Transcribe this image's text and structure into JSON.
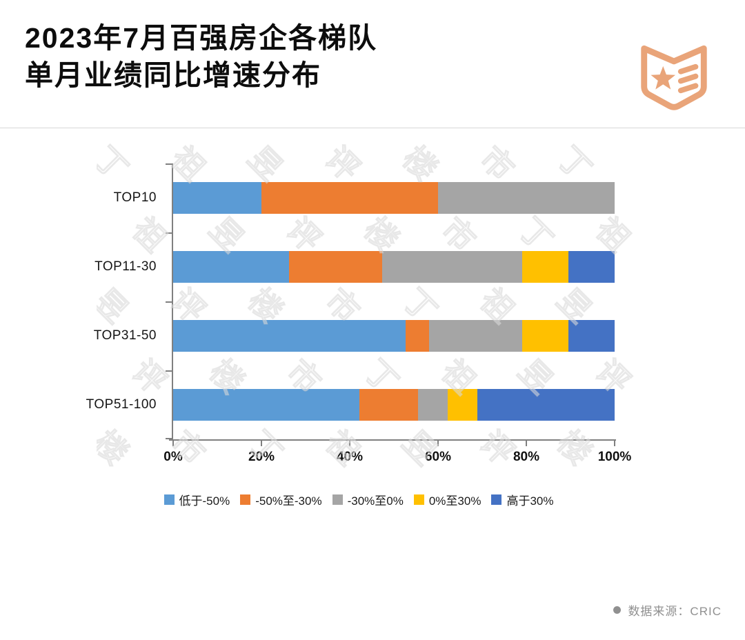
{
  "header": {
    "title_line1": "2023年7月百强房企各梯队",
    "title_line2": "单月业绩同比增速分布",
    "logo_icon": "open-book-star-logo",
    "logo_color": "#E9A479"
  },
  "chart_data": {
    "type": "bar",
    "orientation": "horizontal",
    "stacked": true,
    "unit": "%",
    "title": "2023年7月百强房企各梯队单月业绩同比增速分布",
    "categories": [
      "TOP10",
      "TOP11-30",
      "TOP31-50",
      "TOP51-100"
    ],
    "series": [
      {
        "name": "低于-50%",
        "color": "#5B9BD5",
        "values": [
          20,
          26.3,
          52.6,
          42.2
        ]
      },
      {
        "name": "-50%至-30%",
        "color": "#ED7D31",
        "values": [
          40,
          21.1,
          5.3,
          13.3
        ]
      },
      {
        "name": "-30%至0%",
        "color": "#A5A5A5",
        "values": [
          40,
          31.6,
          21.1,
          6.7
        ]
      },
      {
        "name": "0%至30%",
        "color": "#FFC000",
        "values": [
          0,
          10.5,
          10.5,
          6.7
        ]
      },
      {
        "name": "高于30%",
        "color": "#4472C4",
        "values": [
          0,
          10.5,
          10.5,
          31.1
        ]
      }
    ],
    "x_ticks": [
      "0%",
      "20%",
      "40%",
      "60%",
      "80%",
      "100%"
    ],
    "xlim": [
      0,
      100
    ],
    "xlabel": "",
    "ylabel": "",
    "grid": false,
    "legend_position": "bottom"
  },
  "watermark": {
    "text": "丁祖昱评楼市"
  },
  "footer": {
    "source_label": "数据来源：CRIC"
  },
  "icons": {
    "logo": "open-book-star-logo",
    "source_bullet": "dot-icon"
  }
}
